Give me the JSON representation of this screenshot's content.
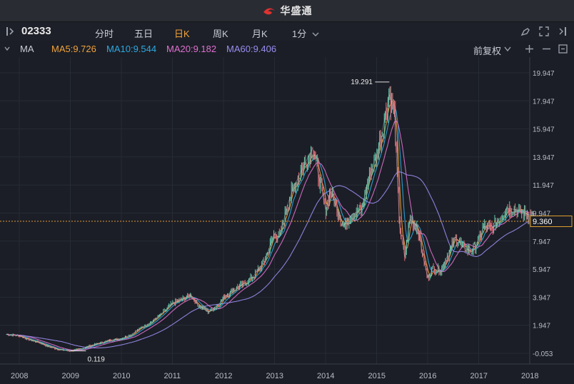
{
  "app": {
    "title": "华盛通"
  },
  "toolbar": {
    "symbol": "02333",
    "periods": [
      "分时",
      "五日",
      "日K",
      "周K",
      "月K",
      "1分"
    ],
    "active_period": "日K"
  },
  "indicator": {
    "name": "MA",
    "ma5": "MA5:9.726",
    "ma10": "MA10:9.544",
    "ma20": "MA20:9.182",
    "ma60": "MA60:9.406",
    "adjust": "前复权",
    "colors": {
      "ma5": "#f0a23c",
      "ma10": "#2ea8e0",
      "ma20": "#e070d0",
      "ma60": "#9a8cf0"
    }
  },
  "chart_data": {
    "type": "line",
    "title": "",
    "x_ticks": [
      "2008",
      "2009",
      "2010",
      "2011",
      "2012",
      "2013",
      "2014",
      "2015",
      "2016",
      "2017",
      "2018"
    ],
    "y_ticks": [
      "19.947",
      "17.947",
      "15.947",
      "13.947",
      "11.947",
      "9.947",
      "7.947",
      "5.947",
      "3.947",
      "1.947",
      "-0.053"
    ],
    "ylim": [
      -0.053,
      19.947
    ],
    "current_price": "9.360",
    "max_label": "19.291",
    "min_label": "0.119",
    "series": [
      {
        "x": [
          2007.75,
          2008.0,
          2008.2,
          2008.4,
          2008.6,
          2008.8,
          2009.0,
          2009.2,
          2009.4,
          2009.6,
          2009.8,
          2010.0,
          2010.2,
          2010.4,
          2010.6,
          2010.8,
          2011.0,
          2011.2,
          2011.35,
          2011.5,
          2011.7,
          2011.9,
          2012.0,
          2012.2,
          2012.4,
          2012.6,
          2012.8,
          2013.0,
          2013.1,
          2013.25,
          2013.4,
          2013.6,
          2013.75,
          2013.9,
          2014.0,
          2014.1,
          2014.25,
          2014.35,
          2014.5,
          2014.7,
          2014.85,
          2015.0,
          2015.15,
          2015.25,
          2015.35,
          2015.45,
          2015.55,
          2015.65,
          2015.8,
          2015.9,
          2016.0,
          2016.1,
          2016.25,
          2016.4,
          2016.55,
          2016.7,
          2016.85,
          2017.0,
          2017.1,
          2017.25,
          2017.4,
          2017.55,
          2017.7,
          2017.85,
          2018.0,
          2018.1
        ],
        "values": [
          1.3,
          1.2,
          0.9,
          0.7,
          0.4,
          0.2,
          0.12,
          0.25,
          0.5,
          0.7,
          0.9,
          1.0,
          1.3,
          1.8,
          2.2,
          2.8,
          3.5,
          3.8,
          4.1,
          3.4,
          2.9,
          3.4,
          3.9,
          4.5,
          4.9,
          5.5,
          6.5,
          8.5,
          8.2,
          10.5,
          12.0,
          13.5,
          14.6,
          12.0,
          10.2,
          11.5,
          10.0,
          9.0,
          9.8,
          10.2,
          12.5,
          14.0,
          16.5,
          18.4,
          17.0,
          9.0,
          6.8,
          9.5,
          9.0,
          7.0,
          5.3,
          6.0,
          5.8,
          7.0,
          8.2,
          7.5,
          7.2,
          8.0,
          9.0,
          8.8,
          9.5,
          10.3,
          10.2,
          10.0,
          9.8,
          9.36
        ]
      }
    ]
  }
}
